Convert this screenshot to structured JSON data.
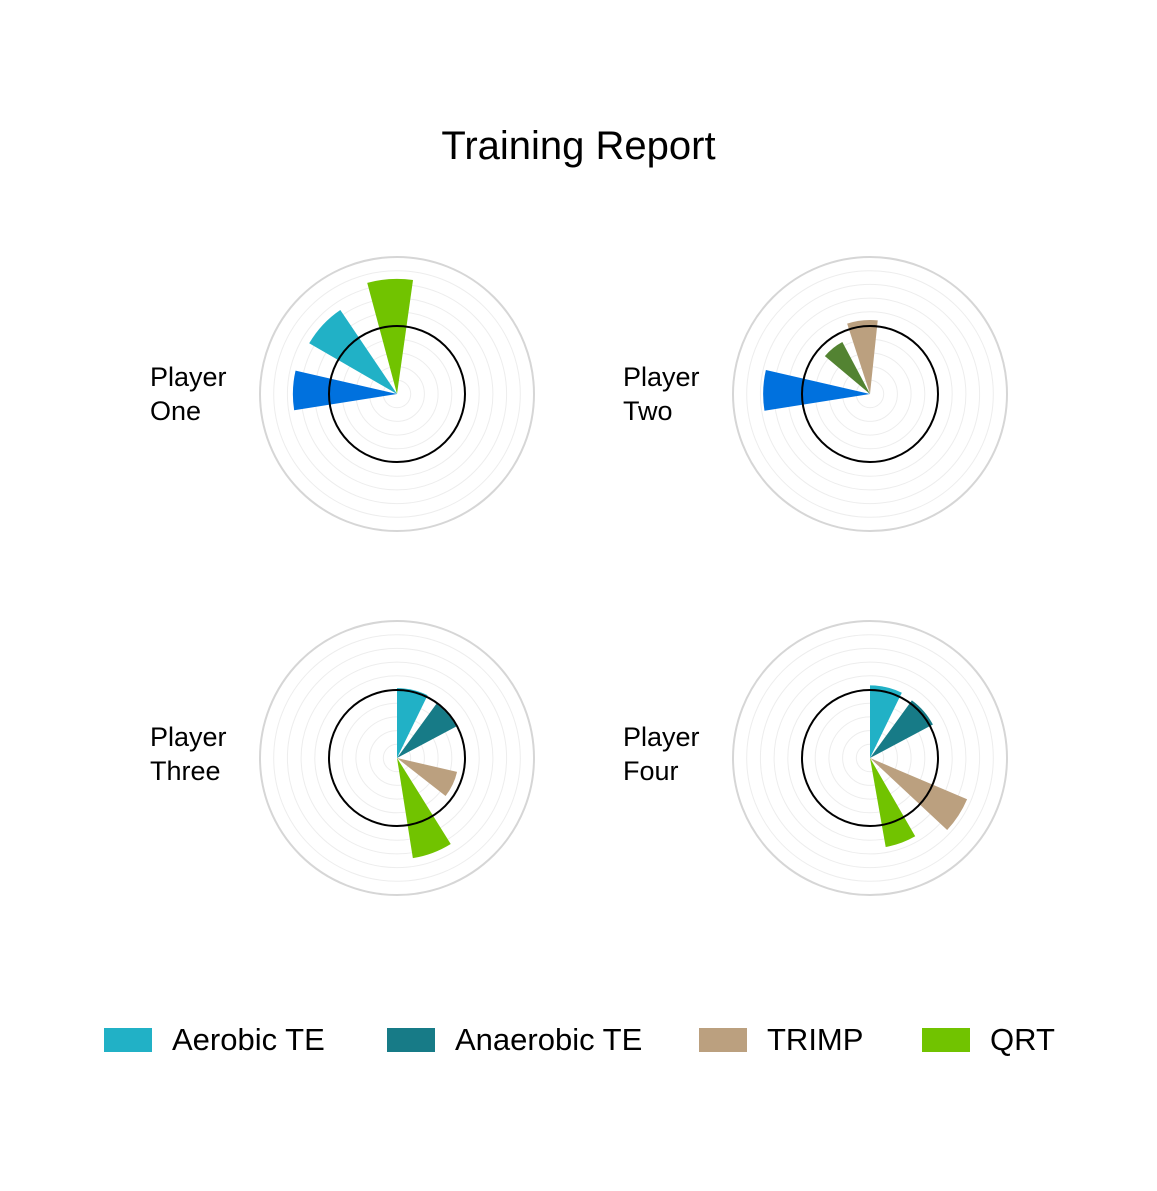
{
  "chart_data": {
    "type": "polar-bar",
    "title": "Training Report",
    "categories": [
      "Aerobic TE",
      "Anaerobic TE",
      "TRIMP",
      "QRT"
    ],
    "colors": {
      "Aerobic TE": "#21b1c6",
      "Anaerobic TE": "#177b87",
      "TRIMP": "#bba07f",
      "QRT": "#71c300"
    },
    "grid": true,
    "panels": [
      {
        "label": "Player\nOne",
        "bars": [
          {
            "series": "QRT",
            "value": 8.4,
            "from_deg": 345,
            "to_deg": 8
          },
          {
            "series": "Aerobic TE",
            "value": 7.4,
            "from_deg": 300,
            "to_deg": 326
          },
          {
            "series": "Dark Blue",
            "color": "#0071de",
            "value": 7.6,
            "from_deg": 261,
            "to_deg": 283
          }
        ]
      },
      {
        "label": "Player\nTwo",
        "bars": [
          {
            "series": "TRIMP",
            "value": 5.4,
            "from_deg": 342,
            "to_deg": 6
          },
          {
            "series": "Dark Green",
            "color": "#538332",
            "value": 4.3,
            "from_deg": 310,
            "to_deg": 332
          },
          {
            "series": "Dark Blue",
            "color": "#0071de",
            "value": 7.8,
            "from_deg": 261,
            "to_deg": 283
          }
        ]
      },
      {
        "label": "Player\nThree",
        "bars": [
          {
            "series": "Aerobic TE",
            "value": 5.1,
            "from_deg": 0,
            "to_deg": 26
          },
          {
            "series": "Anaerobic TE",
            "value": 4.9,
            "from_deg": 36,
            "to_deg": 62
          },
          {
            "series": "TRIMP",
            "value": 4.5,
            "from_deg": 103,
            "to_deg": 128
          },
          {
            "series": "QRT",
            "value": 7.4,
            "from_deg": 148,
            "to_deg": 171
          }
        ]
      },
      {
        "label": "Player\nFour",
        "bars": [
          {
            "series": "Aerobic TE",
            "value": 5.3,
            "from_deg": 0,
            "to_deg": 26
          },
          {
            "series": "Anaerobic TE",
            "value": 5.2,
            "from_deg": 36,
            "to_deg": 62
          },
          {
            "series": "TRIMP",
            "value": 7.7,
            "from_deg": 113,
            "to_deg": 133
          },
          {
            "series": "QRT",
            "value": 6.6,
            "from_deg": 150,
            "to_deg": 170
          }
        ]
      }
    ]
  }
}
